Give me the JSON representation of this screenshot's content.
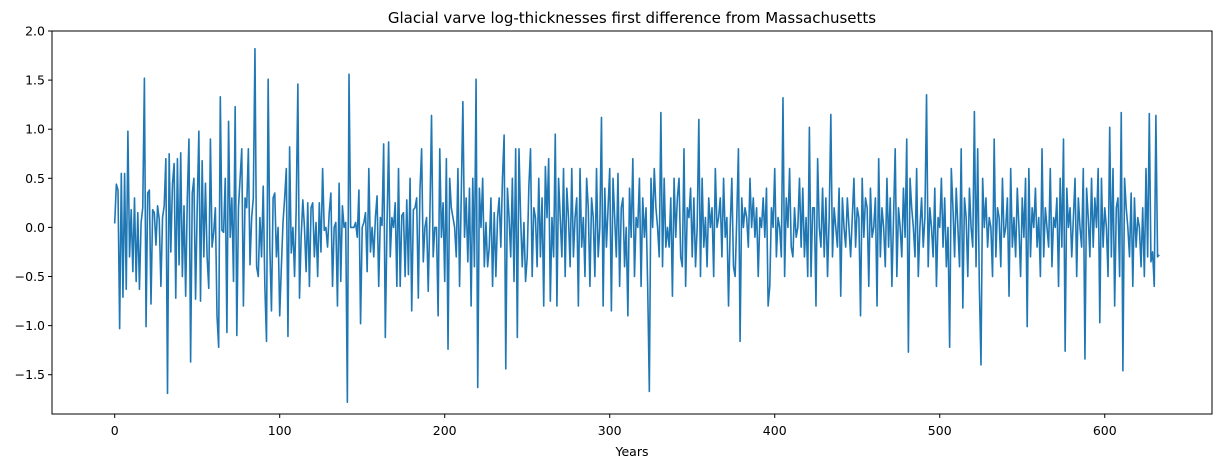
{
  "chart_data": {
    "type": "line",
    "title": "Glacial varve log-thicknesses first difference from Massachusetts",
    "xlabel": "Years",
    "ylabel": "",
    "xlim": [
      -38,
      665
    ],
    "ylim": [
      -1.9,
      2.0
    ],
    "xticks": [
      0,
      100,
      200,
      300,
      400,
      500,
      600
    ],
    "yticks": [
      -1.5,
      -1.0,
      -0.5,
      0.0,
      0.5,
      1.0,
      1.5,
      2.0
    ],
    "xtick_labels": [
      "0",
      "100",
      "200",
      "300",
      "400",
      "500",
      "600"
    ],
    "ytick_labels": [
      "−1.5",
      "−1.0",
      "−0.5",
      "0.0",
      "0.5",
      "1.0",
      "1.5",
      "2.0"
    ],
    "grid": false,
    "legend": "none",
    "series": [
      {
        "color": "#1f77b4",
        "x_start": 0,
        "x_step": 1,
        "values": [
          0.04,
          0.44,
          0.38,
          -1.03,
          0.55,
          -0.71,
          0.55,
          -0.63,
          0.98,
          -0.3,
          0.18,
          -0.45,
          0.3,
          -0.55,
          0.15,
          -0.63,
          0.05,
          0.2,
          1.52,
          -1.01,
          0.35,
          0.38,
          -0.78,
          0.18,
          0.15,
          -0.18,
          0.22,
          0.08,
          -0.6,
          0.1,
          0.22,
          0.7,
          -1.69,
          0.75,
          -0.25,
          0.44,
          0.65,
          -0.72,
          0.7,
          -0.38,
          0.76,
          -0.5,
          0.22,
          -0.7,
          0.3,
          0.9,
          -1.37,
          0.35,
          0.5,
          -0.73,
          0.2,
          0.98,
          -0.75,
          0.68,
          -0.3,
          0.45,
          -0.3,
          -0.62,
          0.9,
          -0.2,
          -0.05,
          0.2,
          -0.9,
          -1.22,
          1.33,
          -0.03,
          -0.05,
          0.5,
          -1.07,
          1.08,
          -0.1,
          0.3,
          -0.55,
          1.23,
          -1.1,
          0.2,
          0.5,
          0.8,
          -0.8,
          0.3,
          0.2,
          0.8,
          -0.38,
          0.1,
          0.3,
          1.82,
          -0.4,
          -0.5,
          0.1,
          -0.3,
          0.42,
          -0.6,
          -1.16,
          1.51,
          -0.2,
          -0.85,
          0.3,
          0.35,
          -0.3,
          0.0,
          -0.9,
          -0.4,
          0.05,
          0.3,
          0.6,
          -1.11,
          0.82,
          -0.26,
          0.0,
          -0.5,
          0.2,
          1.46,
          -0.72,
          -0.1,
          0.28,
          0.0,
          -0.45,
          0.25,
          -0.6,
          0.2,
          0.25,
          -0.3,
          0.05,
          -0.5,
          0.25,
          -0.25,
          0.6,
          -0.03,
          0.0,
          -0.2,
          0.15,
          0.35,
          -0.6,
          0.0,
          0.05,
          -0.8,
          0.45,
          -0.55,
          0.22,
          0.0,
          0.05,
          -1.78,
          1.56,
          0.0,
          0.0,
          0.0,
          0.05,
          -0.1,
          0.38,
          -0.98,
          0.0,
          0.05,
          0.15,
          -0.45,
          0.6,
          -0.25,
          0.0,
          -0.3,
          0.1,
          0.32,
          -0.6,
          0.1,
          0.02,
          0.85,
          -1.12,
          0.0,
          0.87,
          -0.3,
          0.1,
          0.0,
          0.25,
          -0.6,
          0.6,
          -0.6,
          0.12,
          0.15,
          -0.5,
          0.28,
          -0.48,
          0.5,
          -0.85,
          0.18,
          0.2,
          0.3,
          -0.72,
          0.38,
          0.8,
          -0.35,
          0.0,
          0.1,
          -0.65,
          0.12,
          1.14,
          -0.3,
          0.0,
          0.0,
          -0.9,
          0.8,
          -0.1,
          0.25,
          -0.55,
          0.7,
          -1.24,
          0.5,
          0.2,
          0.1,
          0.0,
          -0.3,
          0.6,
          -0.6,
          0.3,
          1.28,
          -0.1,
          0.3,
          -0.35,
          0.4,
          -0.8,
          0.5,
          -0.4,
          1.51,
          -1.63,
          0.4,
          0.0,
          0.5,
          -0.4,
          0.05,
          -0.4,
          -0.2,
          0.3,
          -0.6,
          0.15,
          -0.5,
          0.1,
          0.3,
          -0.2,
          0.5,
          0.94,
          -1.44,
          0.4,
          0.1,
          -0.3,
          0.5,
          -0.55,
          0.8,
          -1.12,
          0.8,
          0.1,
          -0.4,
          0.05,
          -0.55,
          -0.3,
          0.42,
          0.8,
          -0.5,
          0.2,
          0.1,
          -0.4,
          0.5,
          -0.3,
          0.3,
          -0.8,
          0.62,
          0.1,
          0.7,
          -0.75,
          0.1,
          -0.3,
          0.95,
          -0.8,
          0.5,
          0.1,
          -0.3,
          0.6,
          -0.5,
          0.4,
          0.1,
          -0.4,
          0.6,
          -0.3,
          0.1,
          0.3,
          -0.8,
          0.6,
          -0.2,
          0.1,
          -0.5,
          0.5,
          0.2,
          -0.6,
          0.3,
          0.1,
          -0.5,
          0.6,
          -0.3,
          0.0,
          1.12,
          -0.8,
          0.4,
          -0.2,
          0.2,
          0.6,
          -0.85,
          0.5,
          0.1,
          -0.3,
          0.55,
          -0.6,
          0.2,
          0.3,
          -0.4,
          0.0,
          -0.9,
          0.4,
          -0.1,
          0.7,
          -0.5,
          0.1,
          0.0,
          0.5,
          -0.6,
          0.3,
          -0.1,
          0.2,
          -0.6,
          -1.67,
          0.5,
          0.0,
          0.6,
          0.2,
          0.0,
          -0.3,
          1.17,
          -0.4,
          0.5,
          -0.2,
          0.0,
          -0.2,
          0.3,
          -0.7,
          0.5,
          -0.1,
          0.3,
          0.5,
          -0.3,
          -0.4,
          0.8,
          -0.6,
          0.2,
          0.1,
          0.4,
          -0.3,
          0.3,
          -0.4,
          0.0,
          1.1,
          -0.5,
          0.5,
          -0.2,
          0.1,
          -0.4,
          0.3,
          0.0,
          0.2,
          -0.5,
          0.6,
          0.0,
          0.1,
          0.3,
          -0.3,
          0.5,
          -0.1,
          0.1,
          -0.8,
          0.0,
          0.5,
          -0.4,
          -0.5,
          0.1,
          0.8,
          -1.16,
          0.3,
          0.0,
          0.2,
          0.1,
          -0.2,
          0.5,
          0.0,
          0.3,
          -0.1,
          0.2,
          -0.5,
          0.1,
          0.0,
          0.3,
          -0.1,
          0.4,
          -0.8,
          -0.6,
          0.2,
          0.0,
          0.6,
          -0.3,
          0.1,
          0.0,
          -0.3,
          1.32,
          -0.5,
          0.3,
          0.0,
          0.6,
          -0.2,
          -0.3,
          0.2,
          -0.1,
          0.0,
          0.5,
          -0.2,
          0.4,
          -0.3,
          0.1,
          -0.5,
          1.02,
          -0.5,
          0.2,
          0.2,
          -0.8,
          0.7,
          0.0,
          -0.2,
          0.4,
          -0.3,
          0.3,
          -0.5,
          0.1,
          1.15,
          -0.3,
          0.2,
          0.0,
          -0.2,
          0.4,
          -0.7,
          0.3,
          0.0,
          -0.2,
          0.3,
          0.0,
          -0.3,
          0.1,
          0.5,
          -0.2,
          0.2,
          0.1,
          -0.9,
          0.5,
          -0.1,
          0.3,
          0.2,
          -0.6,
          0.4,
          -0.1,
          0.0,
          0.3,
          -0.8,
          0.7,
          -0.3,
          0.2,
          0.0,
          -0.4,
          0.5,
          -0.2,
          0.3,
          -0.6,
          0.1,
          0.8,
          -0.5,
          0.2,
          0.0,
          -0.3,
          0.4,
          -0.1,
          0.9,
          -1.27,
          0.5,
          0.2,
          0.0,
          -0.3,
          0.6,
          -0.5,
          0.0,
          0.3,
          -0.2,
          0.1,
          1.35,
          -0.4,
          0.2,
          0.0,
          -0.3,
          0.4,
          -0.6,
          0.1,
          0.0,
          0.5,
          -0.2,
          0.3,
          -0.4,
          0.0,
          -1.22,
          0.6,
          0.2,
          -0.3,
          0.4,
          0.0,
          -0.4,
          0.8,
          -0.82,
          0.3,
          0.1,
          -0.5,
          0.4,
          0.0,
          -0.2,
          1.18,
          -0.4,
          0.8,
          -0.6,
          -1.4,
          0.5,
          0.0,
          0.3,
          -0.2,
          0.1,
          0.0,
          -0.5,
          0.9,
          -0.3,
          0.2,
          0.1,
          -0.4,
          0.5,
          -0.1,
          0.0,
          0.3,
          -0.7,
          0.6,
          -0.2,
          0.1,
          -0.3,
          0.4,
          0.0,
          -0.5,
          0.3,
          -0.1,
          0.5,
          -1.01,
          0.6,
          -0.3,
          0.2,
          0.0,
          0.4,
          -0.2,
          0.1,
          -0.5,
          0.8,
          -0.3,
          0.2,
          0.0,
          -0.2,
          0.6,
          -0.4,
          0.1,
          0.0,
          0.3,
          -0.6,
          0.5,
          -0.2,
          0.9,
          -1.26,
          0.4,
          0.0,
          0.2,
          -0.3,
          0.1,
          0.5,
          -0.5,
          0.3,
          0.0,
          -0.2,
          0.6,
          -1.34,
          0.4,
          0.1,
          -0.3,
          0.5,
          -0.2,
          0.3,
          0.0,
          0.6,
          -0.97,
          0.5,
          -0.2,
          0.2,
          0.0,
          -0.5,
          1.02,
          -0.3,
          0.6,
          -0.8,
          0.2,
          0.3,
          -0.5,
          1.17,
          -1.46,
          0.5,
          0.2,
          0.0,
          -0.3,
          0.35,
          -0.6,
          0.3,
          -0.2,
          0.1,
          0.0,
          -0.4,
          0.2,
          -0.5,
          0.6,
          -0.3,
          1.16,
          -0.35,
          -0.25,
          -0.6,
          1.14,
          -0.3,
          -0.28
        ]
      }
    ]
  }
}
